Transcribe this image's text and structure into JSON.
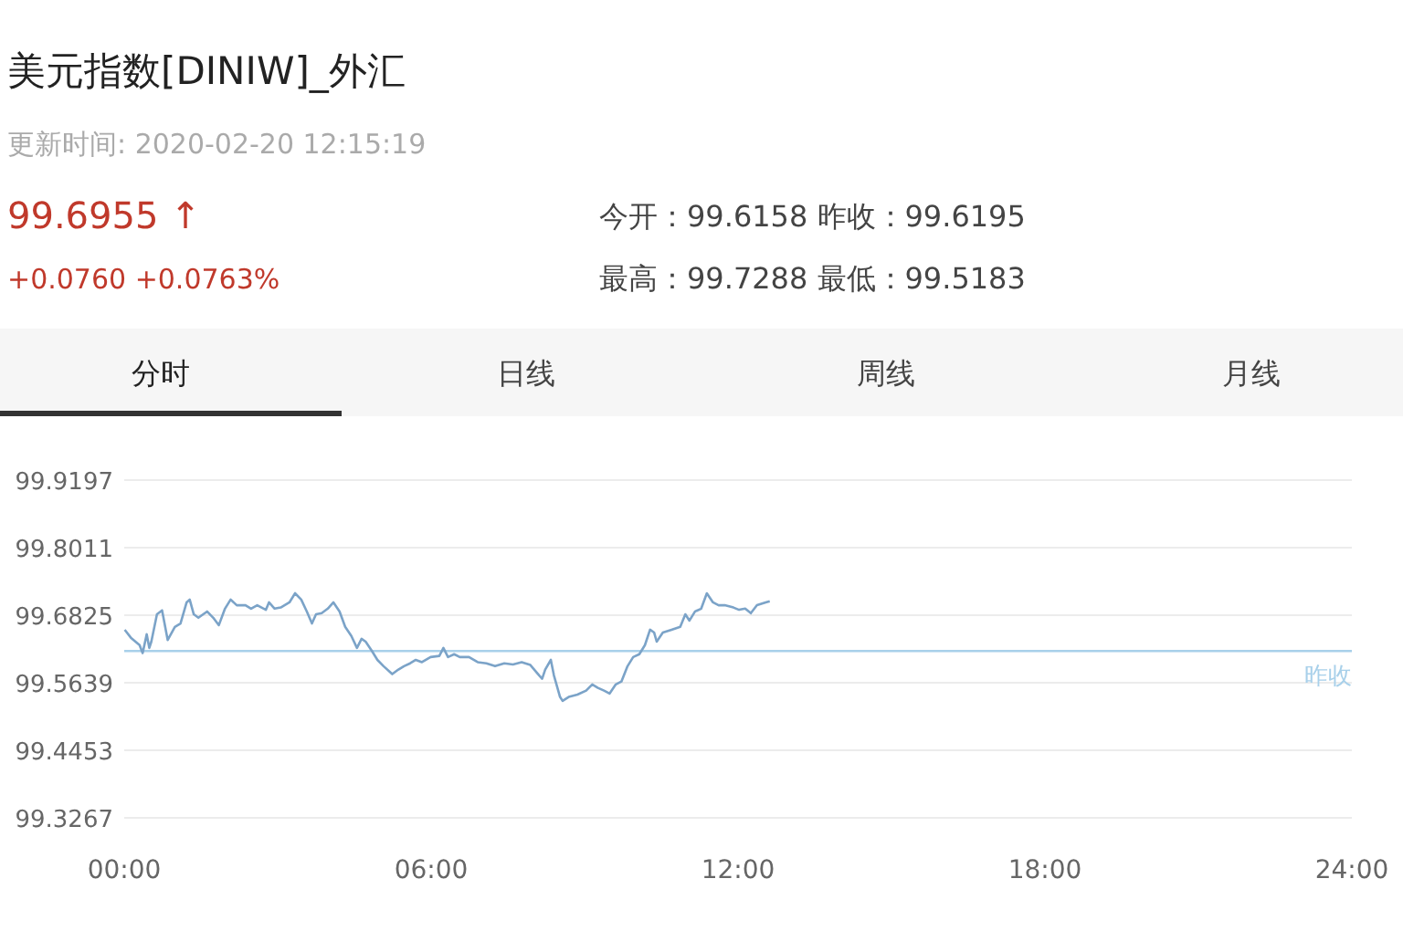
{
  "chart_data": {
    "type": "line",
    "title": "美元指数[DINIW]_外汇",
    "subtitle": "更新时间: 2020-02-20 12:15:19",
    "annotations": [
      "99.6955 ↑",
      "+0.0760   +0.0763%",
      "今开：99.6158   昨收：99.6195",
      "最高：99.7288   最低：99.5183",
      "分时",
      "日线",
      "周线",
      "月线"
    ],
    "x": [
      0.01,
      0.13,
      0.3,
      0.36,
      0.44,
      0.49,
      0.53,
      0.64,
      0.74,
      0.85,
      0.99,
      1.1,
      1.22,
      1.28,
      1.36,
      1.45,
      1.62,
      1.74,
      1.85,
      1.97,
      2.08,
      2.2,
      2.37,
      2.48,
      2.6,
      2.77,
      2.83,
      2.94,
      3.06,
      3.23,
      3.34,
      3.46,
      3.57,
      3.67,
      3.75,
      3.86,
      3.98,
      4.09,
      4.21,
      4.32,
      4.44,
      4.55,
      4.64,
      4.72,
      4.84,
      4.95,
      5.07,
      5.24,
      5.36,
      5.47,
      5.59,
      5.7,
      5.82,
      5.99,
      6.16,
      6.24,
      6.33,
      6.45,
      6.56,
      6.74,
      6.91,
      7.08,
      7.25,
      7.43,
      7.6,
      7.77,
      7.94,
      8.11,
      8.17,
      8.23,
      8.34,
      8.4,
      8.52,
      8.57,
      8.69,
      8.86,
      9.03,
      9.15,
      9.26,
      9.38,
      9.49,
      9.61,
      9.72,
      9.84,
      9.95,
      10.07,
      10.18,
      10.28,
      10.36,
      10.41,
      10.53,
      10.7,
      10.87,
      10.97,
      11.05,
      11.16,
      11.28,
      11.39,
      11.51,
      11.62,
      11.74,
      11.91,
      12.02,
      12.14,
      12.25,
      12.37,
      12.54,
      12.62
    ],
    "series": [
      {
        "color": "#7ba3c8",
        "values": [
          99.657,
          99.643,
          99.63,
          99.616,
          99.649,
          99.625,
          99.636,
          99.684,
          99.691,
          99.639,
          99.662,
          99.668,
          99.705,
          99.71,
          99.684,
          99.678,
          99.689,
          99.678,
          99.665,
          99.694,
          99.71,
          99.7,
          99.7,
          99.694,
          99.7,
          99.692,
          99.705,
          99.694,
          99.696,
          99.705,
          99.721,
          99.71,
          99.689,
          99.668,
          99.684,
          99.686,
          99.694,
          99.705,
          99.689,
          99.662,
          99.646,
          99.625,
          99.641,
          99.636,
          99.62,
          99.604,
          99.593,
          99.579,
          99.587,
          99.593,
          99.598,
          99.604,
          99.6,
          99.609,
          99.611,
          99.625,
          99.609,
          99.614,
          99.609,
          99.609,
          99.6,
          99.598,
          99.593,
          99.598,
          99.596,
          99.6,
          99.595,
          99.577,
          99.571,
          99.587,
          99.604,
          99.577,
          99.539,
          99.532,
          99.539,
          99.543,
          99.55,
          99.561,
          99.555,
          99.55,
          99.545,
          99.561,
          99.566,
          99.593,
          99.609,
          99.614,
          99.63,
          99.657,
          99.652,
          99.636,
          99.652,
          99.657,
          99.662,
          99.684,
          99.673,
          99.689,
          99.694,
          99.721,
          99.705,
          99.7,
          99.7,
          99.696,
          99.692,
          99.694,
          99.686,
          99.7,
          99.705,
          99.707
        ]
      }
    ],
    "xlim": [
      0,
      24
    ],
    "xticks": [
      {
        "value": 0,
        "label": "00:00"
      },
      {
        "value": 6,
        "label": "06:00"
      },
      {
        "value": 12,
        "label": "12:00"
      },
      {
        "value": 18,
        "label": "18:00"
      },
      {
        "value": 24,
        "label": "24:00"
      }
    ],
    "ylim": [
      99.3267,
      99.9197
    ],
    "yticks": [
      99.9197,
      99.8011,
      99.6825,
      99.5639,
      99.4453,
      99.3267
    ],
    "ref_lines": [
      {
        "axis": "y",
        "value": 99.6195,
        "label": "昨收",
        "color": "#a8d0ea"
      }
    ],
    "grid": "y",
    "marker": "none",
    "line_style": "solid"
  }
}
